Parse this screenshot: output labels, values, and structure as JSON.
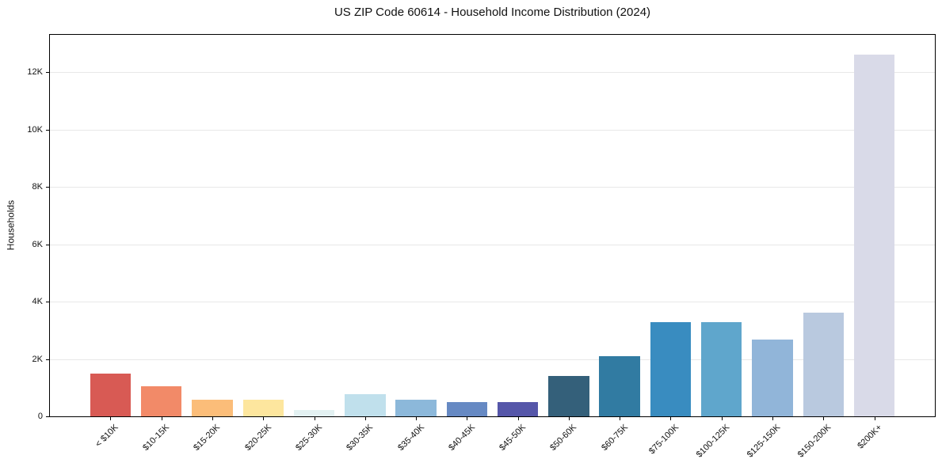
{
  "chart_data": {
    "type": "bar",
    "title": "US ZIP Code 60614 - Household Income Distribution (2024)",
    "xlabel": "",
    "ylabel": "Households",
    "categories": [
      "< $10K",
      "$10-15K",
      "$15-20K",
      "$20-25K",
      "$25-30K",
      "$30-35K",
      "$35-40K",
      "$40-45K",
      "$45-50K",
      "$50-60K",
      "$60-75K",
      "$75-100K",
      "$100-125K",
      "$125-150K",
      "$150-200K",
      "$200K+"
    ],
    "values": [
      1500,
      1060,
      580,
      580,
      230,
      770,
      570,
      510,
      490,
      1420,
      2100,
      3290,
      3280,
      2670,
      3620,
      12600
    ],
    "bar_colors": [
      "#d85a54",
      "#f28a68",
      "#fbbd79",
      "#fde69e",
      "#e3f1f2",
      "#c0e0ec",
      "#8cb8da",
      "#6689c3",
      "#5556a9",
      "#34607a",
      "#317ba2",
      "#398cc0",
      "#5fa6cc",
      "#91b5d9",
      "#b9c9df",
      "#d9dae8"
    ],
    "ylim": [
      0,
      13300
    ],
    "yticks": [
      {
        "value": 0,
        "label": "0"
      },
      {
        "value": 2000,
        "label": "2K"
      },
      {
        "value": 4000,
        "label": "4K"
      },
      {
        "value": 6000,
        "label": "6K"
      },
      {
        "value": 8000,
        "label": "8K"
      },
      {
        "value": 10000,
        "label": "10K"
      },
      {
        "value": 12000,
        "label": "12K"
      }
    ],
    "grid": "horizontal",
    "legend": false,
    "colors": {
      "background": "#ffffff",
      "grid_color": "#e8e8e8",
      "axis_color": "#000000",
      "text_color": "#111111"
    }
  }
}
